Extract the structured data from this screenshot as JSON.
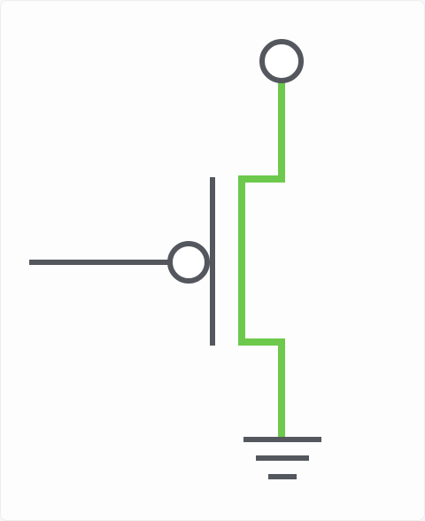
{
  "diagram": {
    "type": "pmos-transistor-schematic",
    "components": {
      "supply_terminal": "open-circle-terminal",
      "gate_input": "gate-wire",
      "gate_inversion_bubble": "bubble",
      "gate_plate": "gate-plate",
      "channel": "channel-path",
      "ground": "ground-symbol"
    },
    "colors": {
      "wire": "#54575d",
      "active_path": "#6cc94c",
      "background": "#fdfdfe"
    }
  }
}
